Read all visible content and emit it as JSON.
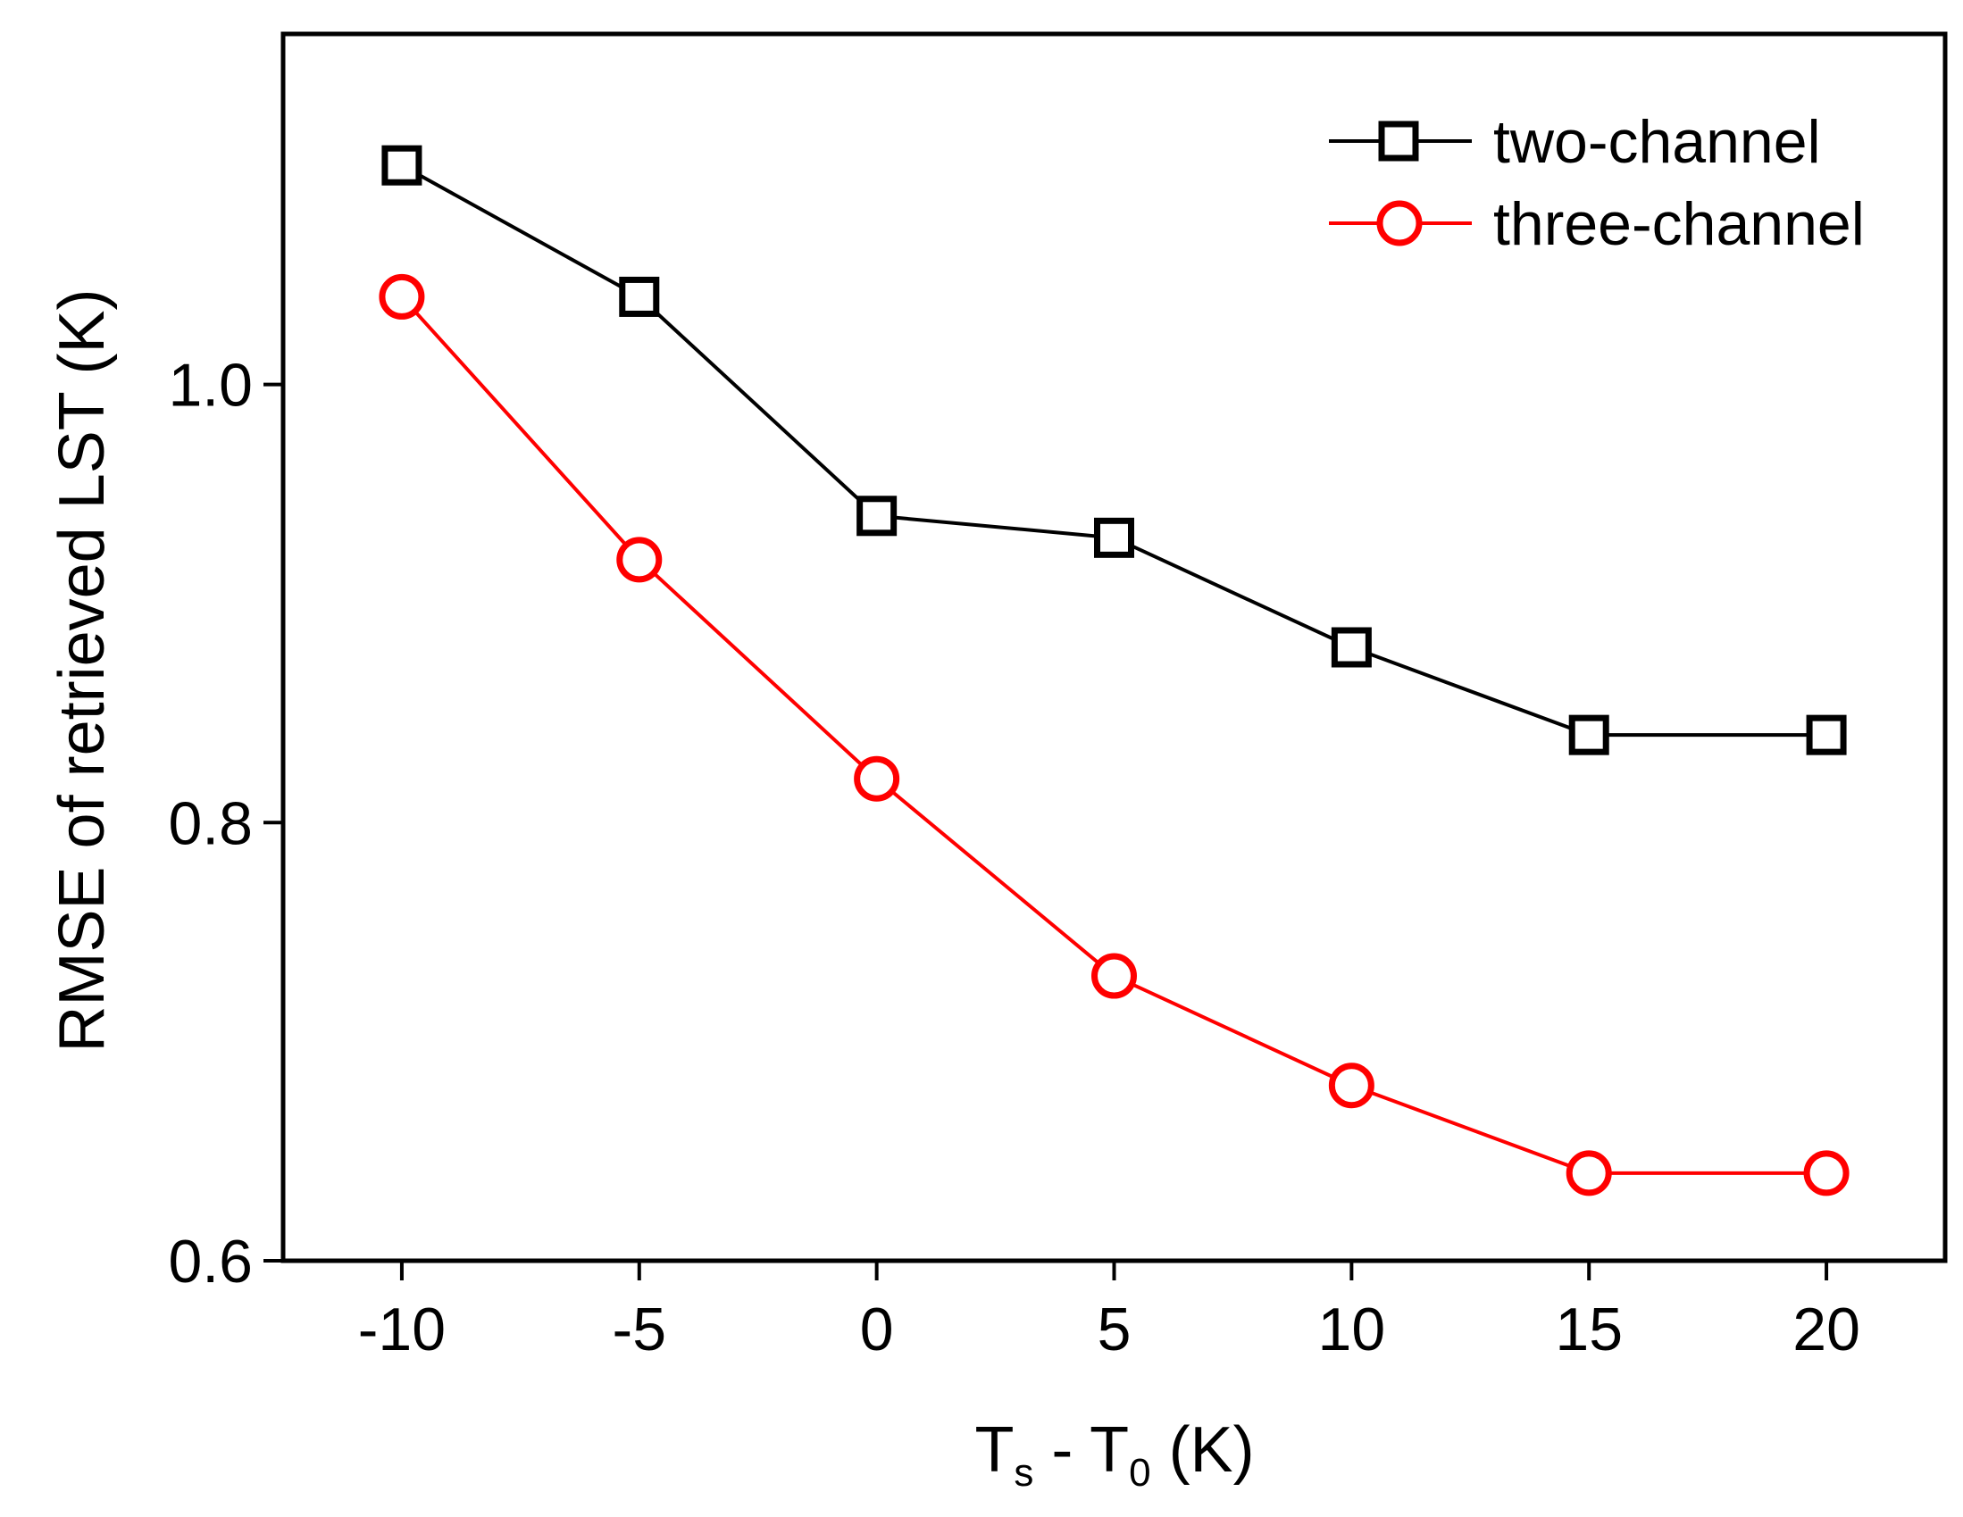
{
  "chart_data": {
    "type": "line",
    "title": "",
    "xlabel": {
      "parts": [
        {
          "text": "T"
        },
        {
          "text": "s",
          "sub": true
        },
        {
          "text": " - T"
        },
        {
          "text": "0",
          "sub": true
        },
        {
          "text": " (K)"
        }
      ]
    },
    "ylabel": "RMSE of retrieved LST (K)",
    "x": [
      -10,
      -5,
      0,
      5,
      10,
      15,
      20
    ],
    "xlim": [
      -12.5,
      22.5
    ],
    "ylim": [
      0.6,
      1.16
    ],
    "xticks": [
      -10,
      -5,
      0,
      5,
      10,
      15,
      20
    ],
    "xtick_labels": [
      "-10",
      "-5",
      "0",
      "5",
      "10",
      "15",
      "20"
    ],
    "yticks": [
      0.6,
      0.8,
      1.0
    ],
    "ytick_labels": [
      "0.6",
      "0.8",
      "1.0"
    ],
    "grid": false,
    "legend_position": "top-right",
    "series": [
      {
        "name": "two-channel",
        "color": "#000000",
        "marker": "square",
        "values": [
          1.1,
          1.04,
          0.94,
          0.93,
          0.88,
          0.84,
          0.84
        ]
      },
      {
        "name": "three-channel",
        "color": "#ff0000",
        "marker": "circle",
        "values": [
          1.04,
          0.92,
          0.82,
          0.73,
          0.68,
          0.64,
          0.64
        ]
      }
    ]
  }
}
